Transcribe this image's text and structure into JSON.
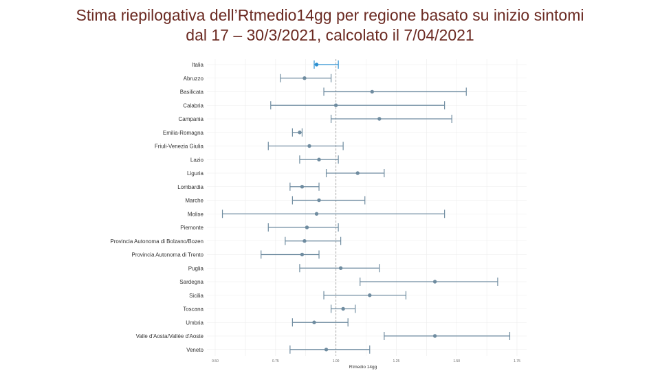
{
  "title": {
    "line1": "Stima riepilogativa dell’Rtmedio14gg per regione basato su inizio sintomi",
    "line2": "dal 17 – 30/3/2021, calcolato il 7/04/2021"
  },
  "colors": {
    "title": "#6b2a22",
    "highlight": "#2a8fd1",
    "series": "#6f8ca0",
    "grid": "#ececec",
    "reference_line": "#aaaaaa"
  },
  "chart_data": {
    "type": "scatter",
    "subtype": "point-range (forest plot)",
    "xlabel": "Rtmedio 14gg",
    "xlim": [
      0.5,
      1.75
    ],
    "xticks": [
      0.5,
      0.75,
      1.0,
      1.25,
      1.5,
      1.75
    ],
    "xtick_labels": [
      "0.50",
      "0.75",
      "1.00",
      "1.25",
      "1.50",
      "1.75"
    ],
    "reference_line": 1.0,
    "grid": true,
    "categories": [
      "Italia",
      "Abruzzo",
      "Basilicata",
      "Calabria",
      "Campania",
      "Emilia-Romagna",
      "Friuli-Venezia Giulia",
      "Lazio",
      "Liguria",
      "Lombardia",
      "Marche",
      "Molise",
      "Piemonte",
      "Provincia Autonoma di Bolzano/Bozen",
      "Provincia Autonoma di Trento",
      "Puglia",
      "Sardegna",
      "Sicilia",
      "Toscana",
      "Umbria",
      "Valle d'Aosta/Vallée d'Aoste",
      "Veneto"
    ],
    "points": [
      {
        "region": "Italia",
        "rt": 0.92,
        "low": 0.91,
        "high": 1.01,
        "highlight": true
      },
      {
        "region": "Abruzzo",
        "rt": 0.87,
        "low": 0.77,
        "high": 0.98
      },
      {
        "region": "Basilicata",
        "rt": 1.15,
        "low": 0.95,
        "high": 1.54
      },
      {
        "region": "Calabria",
        "rt": 1.0,
        "low": 0.73,
        "high": 1.45
      },
      {
        "region": "Campania",
        "rt": 1.18,
        "low": 0.98,
        "high": 1.48
      },
      {
        "region": "Emilia-Romagna",
        "rt": 0.85,
        "low": 0.82,
        "high": 0.86
      },
      {
        "region": "Friuli-Venezia Giulia",
        "rt": 0.89,
        "low": 0.72,
        "high": 1.03
      },
      {
        "region": "Lazio",
        "rt": 0.93,
        "low": 0.85,
        "high": 1.01
      },
      {
        "region": "Liguria",
        "rt": 1.09,
        "low": 0.96,
        "high": 1.2
      },
      {
        "region": "Lombardia",
        "rt": 0.86,
        "low": 0.81,
        "high": 0.93
      },
      {
        "region": "Marche",
        "rt": 0.93,
        "low": 0.82,
        "high": 1.12
      },
      {
        "region": "Molise",
        "rt": 0.92,
        "low": 0.53,
        "high": 1.45
      },
      {
        "region": "Piemonte",
        "rt": 0.88,
        "low": 0.72,
        "high": 1.01
      },
      {
        "region": "Provincia Autonoma di Bolzano/Bozen",
        "rt": 0.87,
        "low": 0.79,
        "high": 1.02
      },
      {
        "region": "Provincia Autonoma di Trento",
        "rt": 0.86,
        "low": 0.69,
        "high": 0.93
      },
      {
        "region": "Puglia",
        "rt": 1.02,
        "low": 0.85,
        "high": 1.18
      },
      {
        "region": "Sardegna",
        "rt": 1.41,
        "low": 1.1,
        "high": 1.67
      },
      {
        "region": "Sicilia",
        "rt": 1.14,
        "low": 0.95,
        "high": 1.29
      },
      {
        "region": "Toscana",
        "rt": 1.03,
        "low": 0.98,
        "high": 1.08
      },
      {
        "region": "Umbria",
        "rt": 0.91,
        "low": 0.82,
        "high": 1.05
      },
      {
        "region": "Valle d'Aosta/Vallée d'Aoste",
        "rt": 1.41,
        "low": 1.2,
        "high": 1.72
      },
      {
        "region": "Veneto",
        "rt": 0.96,
        "low": 0.81,
        "high": 1.14
      }
    ]
  }
}
